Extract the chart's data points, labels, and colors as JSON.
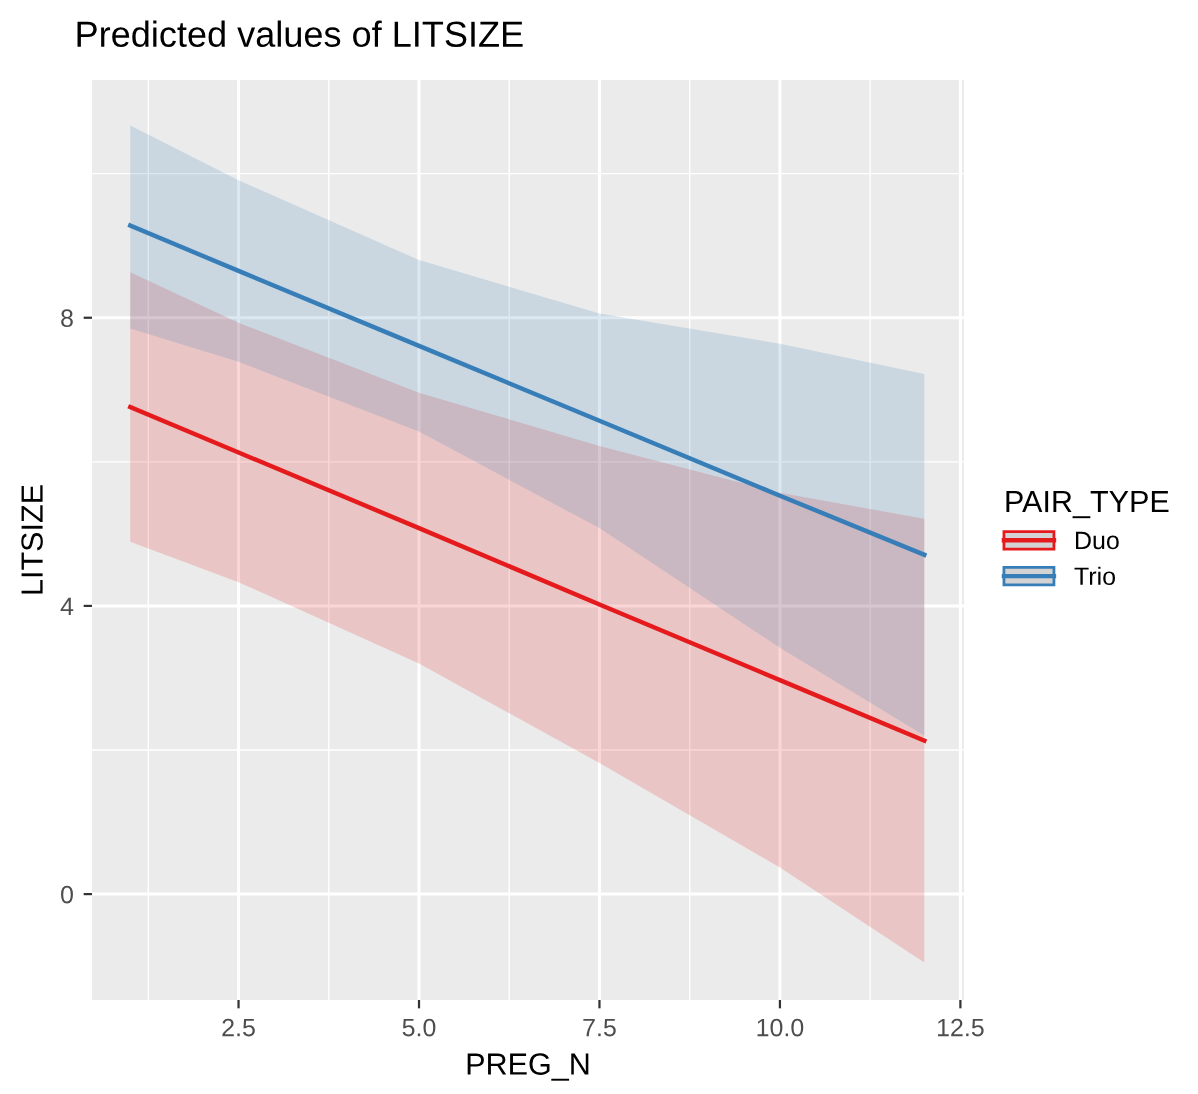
{
  "chart_data": {
    "type": "line",
    "title": "Predicted values of LITSIZE",
    "xlabel": "PREG_N",
    "ylabel": "LITSIZE",
    "legend_title": "PAIR_TYPE",
    "x": [
      1,
      2.5,
      5,
      7.5,
      10,
      12
    ],
    "series": [
      {
        "name": "Duo",
        "color": "#e41a1c",
        "values": [
          6.76,
          6.13,
          5.08,
          4.02,
          2.97,
          2.13
        ],
        "lower": [
          4.89,
          4.33,
          3.2,
          1.82,
          0.37,
          -0.95
        ],
        "upper": [
          8.63,
          7.93,
          6.96,
          6.22,
          5.57,
          5.21
        ]
      },
      {
        "name": "Trio",
        "color": "#377eb8",
        "values": [
          9.28,
          8.65,
          7.61,
          6.57,
          5.53,
          4.71
        ],
        "lower": [
          7.85,
          7.39,
          6.42,
          5.08,
          3.42,
          2.2
        ],
        "upper": [
          10.67,
          9.91,
          8.8,
          8.06,
          7.64,
          7.22
        ]
      }
    ],
    "xlim": [
      0.47,
      12.55
    ],
    "ylim": [
      -1.47,
      11.3
    ],
    "xticks": [
      {
        "value": 2.5,
        "label": "2.5"
      },
      {
        "value": 5,
        "label": "5.0"
      },
      {
        "value": 7.5,
        "label": "7.5"
      },
      {
        "value": 10,
        "label": "10.0"
      },
      {
        "value": 12.5,
        "label": "12.5"
      }
    ],
    "yticks": [
      0,
      4,
      8
    ],
    "grid": true,
    "legend": "right",
    "line_style": "solid",
    "marker": "none"
  }
}
